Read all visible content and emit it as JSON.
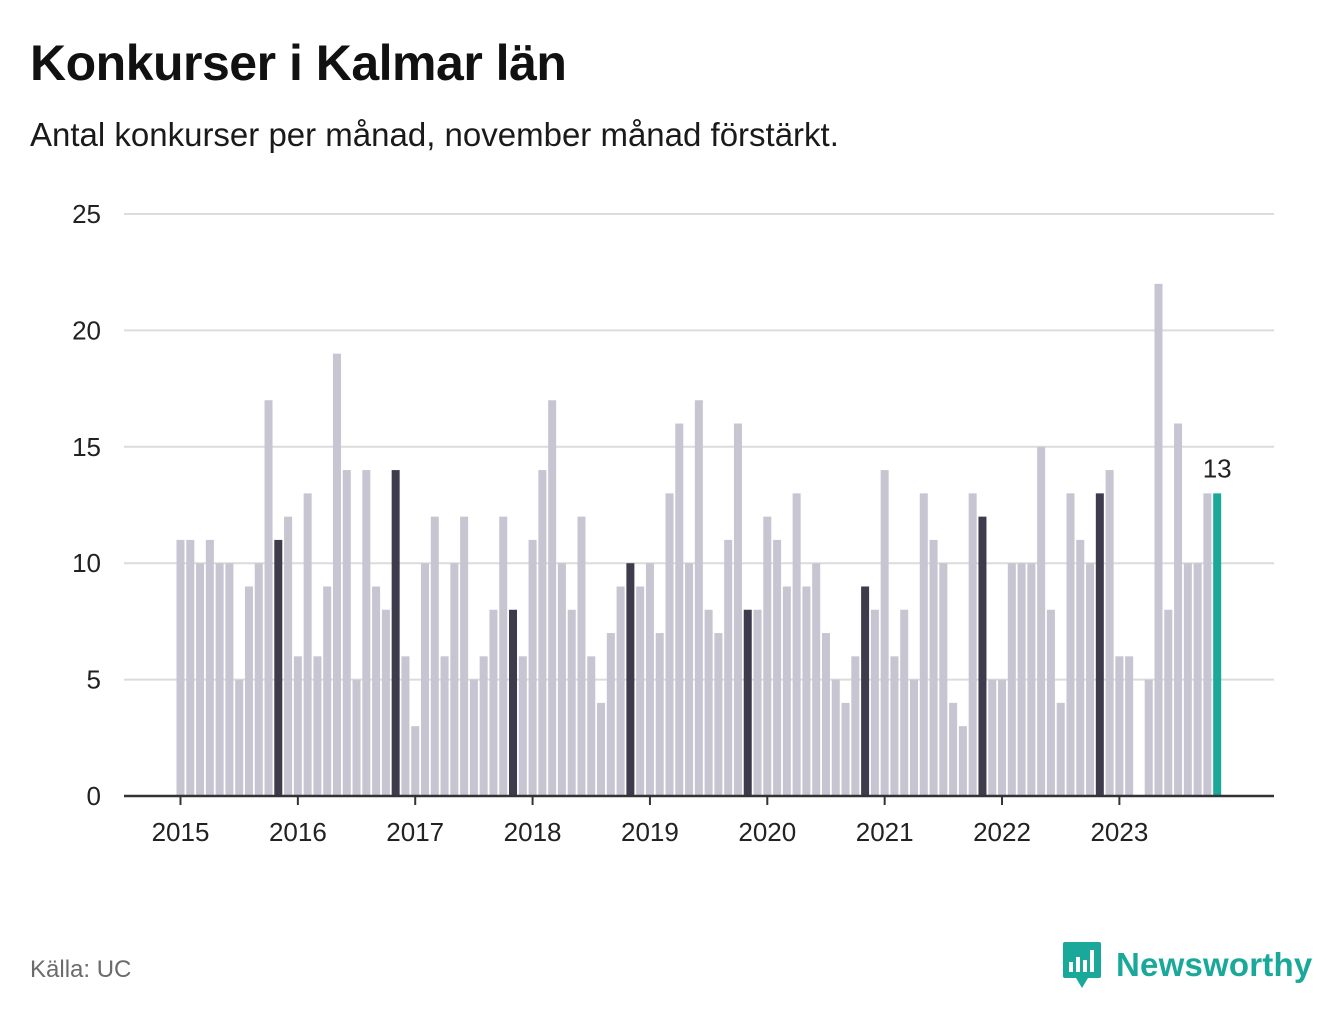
{
  "header": {
    "title": "Konkurser i Kalmar län",
    "subtitle": "Antal konkurser per månad, november månad förstärkt."
  },
  "footer": {
    "source": "Källa: UC",
    "brand": "Newsworthy"
  },
  "colors": {
    "bar": "#c6c5d1",
    "highlight": "#3e3c4c",
    "latest": "#1aa89a",
    "grid": "#dcdcdc",
    "axis": "#333333"
  },
  "chart_data": {
    "type": "bar",
    "ylim": [
      0,
      25
    ],
    "yticks": [
      0,
      5,
      10,
      15,
      20,
      25
    ],
    "xticks": [
      "2015",
      "2016",
      "2017",
      "2018",
      "2019",
      "2020",
      "2021",
      "2022",
      "2023"
    ],
    "highlight_month": "november",
    "start": "2015-01",
    "end": "2023-11",
    "values": [
      11,
      11,
      10,
      11,
      10,
      10,
      5,
      9,
      10,
      17,
      11,
      12,
      6,
      13,
      6,
      9,
      19,
      14,
      5,
      14,
      9,
      8,
      14,
      6,
      3,
      10,
      12,
      6,
      10,
      12,
      5,
      6,
      8,
      12,
      8,
      6,
      11,
      14,
      17,
      10,
      8,
      12,
      6,
      4,
      7,
      9,
      10,
      9,
      10,
      7,
      13,
      16,
      10,
      17,
      8,
      7,
      11,
      16,
      8,
      8,
      12,
      11,
      9,
      13,
      9,
      10,
      7,
      5,
      4,
      6,
      9,
      8,
      14,
      6,
      8,
      5,
      13,
      11,
      10,
      4,
      3,
      13,
      12,
      5,
      5,
      10,
      10,
      10,
      15,
      8,
      4,
      13,
      11,
      10,
      13,
      14,
      6,
      6,
      0,
      5,
      22,
      8,
      16,
      10,
      10,
      13,
      13
    ],
    "annotation": {
      "label": "13"
    }
  }
}
